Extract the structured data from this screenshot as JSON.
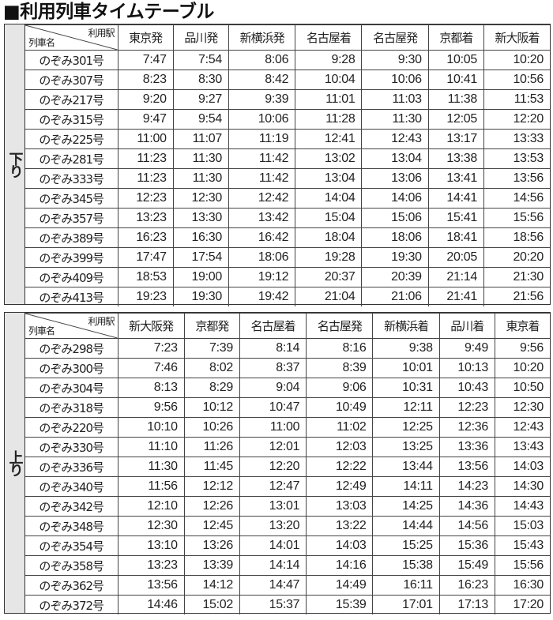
{
  "title": "■利用列車タイムテーブル",
  "corner": {
    "station_label": "利用駅",
    "train_label": "列車名"
  },
  "tables": [
    {
      "direction": "下り",
      "stations": [
        "東京発",
        "品川発",
        "新横浜発",
        "名古屋着",
        "名古屋発",
        "京都着",
        "新大阪着"
      ],
      "rows": [
        {
          "train": "のぞみ301号",
          "times": [
            "7:47",
            "7:54",
            "8:06",
            "9:28",
            "9:30",
            "10:05",
            "10:20"
          ]
        },
        {
          "train": "のぞみ307号",
          "times": [
            "8:23",
            "8:30",
            "8:42",
            "10:04",
            "10:06",
            "10:41",
            "10:56"
          ]
        },
        {
          "train": "のぞみ217号",
          "times": [
            "9:20",
            "9:27",
            "9:39",
            "11:01",
            "11:03",
            "11:38",
            "11:53"
          ]
        },
        {
          "train": "のぞみ315号",
          "times": [
            "9:47",
            "9:54",
            "10:06",
            "11:28",
            "11:30",
            "12:05",
            "12:20"
          ]
        },
        {
          "train": "のぞみ225号",
          "times": [
            "11:00",
            "11:07",
            "11:19",
            "12:41",
            "12:43",
            "13:17",
            "13:33"
          ]
        },
        {
          "train": "のぞみ281号",
          "times": [
            "11:23",
            "11:30",
            "11:42",
            "13:02",
            "13:04",
            "13:38",
            "13:53"
          ]
        },
        {
          "train": "のぞみ333号",
          "times": [
            "11:23",
            "11:30",
            "11:42",
            "13:04",
            "13:06",
            "13:41",
            "13:56"
          ]
        },
        {
          "train": "のぞみ345号",
          "times": [
            "12:23",
            "12:30",
            "12:42",
            "14:04",
            "14:06",
            "14:41",
            "14:56"
          ]
        },
        {
          "train": "のぞみ357号",
          "times": [
            "13:23",
            "13:30",
            "13:42",
            "15:04",
            "15:06",
            "15:41",
            "15:56"
          ]
        },
        {
          "train": "のぞみ389号",
          "times": [
            "16:23",
            "16:30",
            "16:42",
            "18:04",
            "18:06",
            "18:41",
            "18:56"
          ]
        },
        {
          "train": "のぞみ399号",
          "times": [
            "17:47",
            "17:54",
            "18:06",
            "19:28",
            "19:30",
            "20:05",
            "20:20"
          ]
        },
        {
          "train": "のぞみ409号",
          "times": [
            "18:53",
            "19:00",
            "19:12",
            "20:37",
            "20:39",
            "21:14",
            "21:30"
          ]
        },
        {
          "train": "のぞみ413号",
          "times": [
            "19:23",
            "19:30",
            "19:42",
            "21:04",
            "21:06",
            "21:41",
            "21:56"
          ]
        }
      ]
    },
    {
      "direction": "上り",
      "stations": [
        "新大阪発",
        "京都発",
        "名古屋着",
        "名古屋発",
        "新横浜着",
        "品川着",
        "東京着"
      ],
      "rows": [
        {
          "train": "のぞみ298号",
          "times": [
            "7:23",
            "7:39",
            "8:14",
            "8:16",
            "9:38",
            "9:49",
            "9:56"
          ]
        },
        {
          "train": "のぞみ300号",
          "times": [
            "7:46",
            "8:02",
            "8:37",
            "8:39",
            "10:01",
            "10:13",
            "10:20"
          ]
        },
        {
          "train": "のぞみ304号",
          "times": [
            "8:13",
            "8:29",
            "9:04",
            "9:06",
            "10:31",
            "10:43",
            "10:50"
          ]
        },
        {
          "train": "のぞみ318号",
          "times": [
            "9:56",
            "10:12",
            "10:47",
            "10:49",
            "12:11",
            "12:23",
            "12:30"
          ]
        },
        {
          "train": "のぞみ220号",
          "times": [
            "10:10",
            "10:26",
            "11:00",
            "11:02",
            "12:25",
            "12:36",
            "12:43"
          ]
        },
        {
          "train": "のぞみ330号",
          "times": [
            "11:10",
            "11:26",
            "12:01",
            "12:03",
            "13:25",
            "13:36",
            "13:43"
          ]
        },
        {
          "train": "のぞみ336号",
          "times": [
            "11:30",
            "11:45",
            "12:20",
            "12:22",
            "13:44",
            "13:56",
            "14:03"
          ]
        },
        {
          "train": "のぞみ340号",
          "times": [
            "11:56",
            "12:12",
            "12:47",
            "12:49",
            "14:11",
            "14:23",
            "14:30"
          ]
        },
        {
          "train": "のぞみ342号",
          "times": [
            "12:10",
            "12:26",
            "13:01",
            "13:03",
            "14:25",
            "14:36",
            "14:43"
          ]
        },
        {
          "train": "のぞみ348号",
          "times": [
            "12:30",
            "12:45",
            "13:20",
            "13:22",
            "14:44",
            "14:56",
            "15:03"
          ]
        },
        {
          "train": "のぞみ354号",
          "times": [
            "13:10",
            "13:26",
            "14:01",
            "14:03",
            "15:25",
            "15:36",
            "15:43"
          ]
        },
        {
          "train": "のぞみ358号",
          "times": [
            "13:23",
            "13:39",
            "14:14",
            "14:16",
            "15:38",
            "15:49",
            "15:56"
          ]
        },
        {
          "train": "のぞみ362号",
          "times": [
            "13:56",
            "14:12",
            "14:47",
            "14:49",
            "16:11",
            "16:23",
            "16:30"
          ]
        },
        {
          "train": "のぞみ372号",
          "times": [
            "14:46",
            "15:02",
            "15:37",
            "15:39",
            "17:01",
            "17:13",
            "17:20"
          ]
        }
      ]
    }
  ]
}
